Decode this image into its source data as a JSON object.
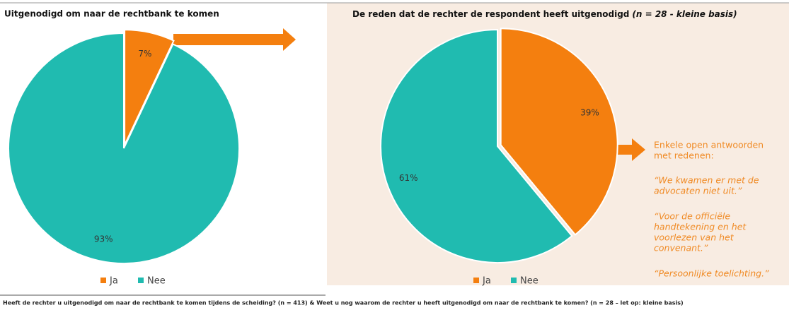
{
  "chart_data": [
    {
      "type": "pie",
      "title": "Uitgenodigd om naar de rechtbank te komen",
      "categories": [
        "Ja",
        "Nee"
      ],
      "values": [
        7,
        93
      ],
      "value_labels": [
        "7%",
        "93%"
      ],
      "colors": [
        "#f47f0f",
        "#20bbb0"
      ]
    },
    {
      "type": "pie",
      "title": "De reden dat de rechter de respondent heeft uitgenodigd",
      "title_note": "(n = 28 - kleine basis)",
      "categories": [
        "Ja",
        "Nee"
      ],
      "values": [
        39,
        61
      ],
      "value_labels": [
        "39%",
        "61%"
      ],
      "colors": [
        "#f47f0f",
        "#20bbb0"
      ]
    }
  ],
  "annotations": [
    [
      "Enkele open antwoorden",
      "met redenen:"
    ],
    [
      "“We kwamen er met de",
      "advocaten niet uit.”"
    ],
    [
      "“Voor de officiële",
      "handtekening en het",
      "voorlezen van het",
      "convenant.”"
    ],
    [
      "“Persoonlijke toelichting.”"
    ]
  ],
  "footer": "Heeft de rechter u uitgenodigd om naar de rechtbank te komen tijdens de scheiding? (n = 413) & Weet u nog waarom de rechter u heeft uitgenodigd om naar de rechtbank te komen? (n = 28 – let op: kleine basis)"
}
